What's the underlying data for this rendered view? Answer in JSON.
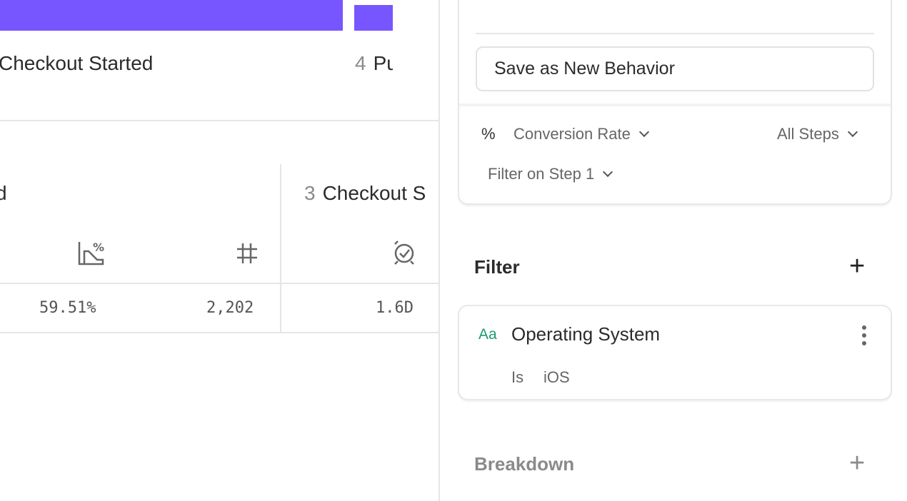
{
  "funnel": {
    "bar_color": "#7856ff",
    "steps": [
      {
        "label": "Checkout Started"
      },
      {
        "number": "4",
        "label": "Pu"
      }
    ]
  },
  "table": {
    "col1_header": "d",
    "col2_header": {
      "number": "3",
      "label": "Checkout S"
    },
    "icons": [
      "conversion-chart-icon",
      "hash-icon",
      "time-check-icon"
    ],
    "values": [
      "59.51%",
      "2,202",
      "1.6D"
    ]
  },
  "panel": {
    "save_button": "Save as New Behavior",
    "measure_symbol": "%",
    "measure": "Conversion Rate",
    "steps": "All Steps",
    "filter_step": "Filter on Step 1",
    "filter_title": "Filter",
    "filter": {
      "type_icon": "Aa",
      "property": "Operating System",
      "operator": "Is",
      "value": "iOS",
      "type_color": "#1a9c6c"
    },
    "breakdown_title": "Breakdown"
  }
}
